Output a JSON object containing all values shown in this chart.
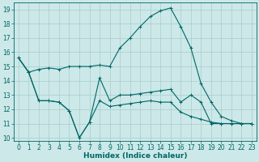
{
  "xlabel": "Humidex (Indice chaleur)",
  "xlim": [
    -0.5,
    23.5
  ],
  "ylim": [
    9.8,
    19.5
  ],
  "yticks": [
    10,
    11,
    12,
    13,
    14,
    15,
    16,
    17,
    18,
    19
  ],
  "xticks": [
    0,
    1,
    2,
    3,
    4,
    5,
    6,
    7,
    8,
    9,
    10,
    11,
    12,
    13,
    14,
    15,
    16,
    17,
    18,
    19,
    20,
    21,
    22,
    23
  ],
  "bg_color": "#cce8e8",
  "grid_color": "#aacccc",
  "line_color": "#006666",
  "lines": [
    [
      15.6,
      14.6,
      14.8,
      14.9,
      14.8,
      15.0,
      15.0,
      15.0,
      15.1,
      15.0,
      16.3,
      17.0,
      17.8,
      18.5,
      18.9,
      19.1,
      17.8,
      16.3,
      13.8,
      12.5,
      11.5,
      11.2,
      11.0,
      11.0
    ],
    [
      15.6,
      14.6,
      12.6,
      12.6,
      12.5,
      11.9,
      10.0,
      11.1,
      14.2,
      12.6,
      13.0,
      13.0,
      13.1,
      13.2,
      13.3,
      13.4,
      12.5,
      13.0,
      12.5,
      11.0,
      11.0,
      11.0,
      11.0,
      11.0
    ],
    [
      15.6,
      14.6,
      12.6,
      12.6,
      12.5,
      11.9,
      10.0,
      11.1,
      12.6,
      12.2,
      12.3,
      12.4,
      12.5,
      12.6,
      12.5,
      12.5,
      11.8,
      11.5,
      11.3,
      11.1,
      11.0,
      11.0,
      11.0,
      11.0
    ]
  ],
  "tick_fontsize": 5.5,
  "xlabel_fontsize": 6.5,
  "line_width": 0.8,
  "marker_size": 3
}
